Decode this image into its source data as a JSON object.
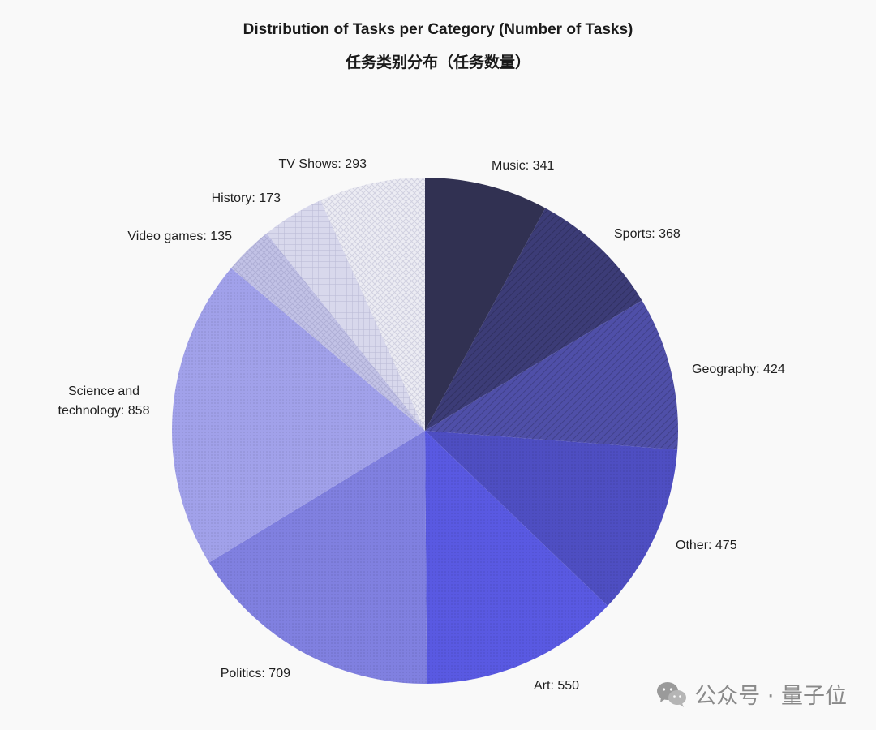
{
  "header": {
    "title": "Distribution of Tasks per Category (Number of Tasks)",
    "subtitle": "任务类别分布（任务数量）"
  },
  "watermark": {
    "icon": "wechat-icon",
    "text": "公众号 · 量子位"
  },
  "chart_data": {
    "type": "pie",
    "title": "Distribution of Tasks per Category (Number of Tasks)",
    "subtitle": "任务类别分布（任务数量）",
    "start": "12 o'clock",
    "direction": "clockwise",
    "slices": [
      {
        "label": "Music",
        "value": 341,
        "color": "#313152",
        "pattern": "solid"
      },
      {
        "label": "Sports",
        "value": 368,
        "color": "#3c3c77",
        "pattern": "diagonal"
      },
      {
        "label": "Geography",
        "value": 424,
        "color": "#4f4fa8",
        "pattern": "diagonal"
      },
      {
        "label": "Other",
        "value": 475,
        "color": "#4e4ec2",
        "pattern": "dots"
      },
      {
        "label": "Art",
        "value": 550,
        "color": "#5959e2",
        "pattern": "dots"
      },
      {
        "label": "Politics",
        "value": 709,
        "color": "#8080e0",
        "pattern": "dots"
      },
      {
        "label": "Science and technology",
        "value": 858,
        "color": "#a1a1ea",
        "pattern": "dots"
      },
      {
        "label": "Video games",
        "value": 135,
        "color": "#c2c2e6",
        "pattern": "crosshatch"
      },
      {
        "label": "History",
        "value": 173,
        "color": "#d8d8ec",
        "pattern": "grid"
      },
      {
        "label": "TV Shows",
        "value": 293,
        "color": "#ececf3",
        "pattern": "crosshatch"
      }
    ],
    "labels": [
      "Music: 341",
      "Sports: 368",
      "Geography: 424",
      "Other: 475",
      "Art: 550",
      "Politics: 709",
      "Science and",
      "technology: 858",
      "Video games: 135",
      "History: 173",
      "TV Shows: 293"
    ]
  }
}
